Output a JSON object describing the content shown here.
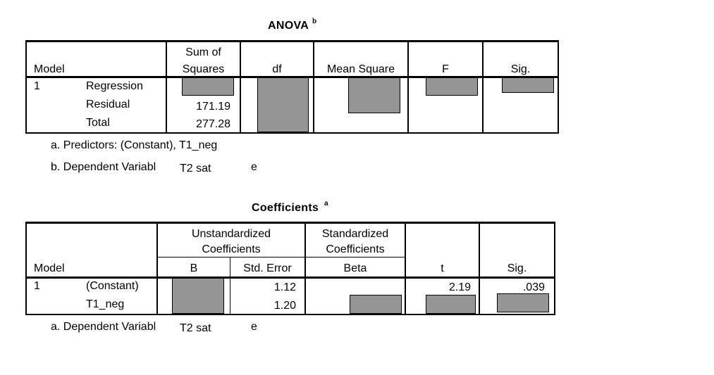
{
  "anova": {
    "title": "ANOVA",
    "title_sup": "b",
    "headers": {
      "model": "Model",
      "ss_line1": "Sum of",
      "ss_line2": "Squares",
      "df": "df",
      "ms": "Mean Square",
      "f": "F",
      "sig": "Sig."
    },
    "rows": [
      {
        "model_num": "1",
        "label": "Regression",
        "ss": ""
      },
      {
        "model_num": "",
        "label": "Residual",
        "ss": "171.19"
      },
      {
        "model_num": "",
        "label": "Total",
        "ss": "277.28"
      }
    ],
    "footnote_a": "a. Predictors: (Constant), T1_neg",
    "footnote_b_prefix": "b. Dependent Variabl",
    "footnote_b_overlay": "T2  sat",
    "footnote_b_suffix": "e"
  },
  "coefficients": {
    "title": "Coefficients",
    "title_sup": "a",
    "headers": {
      "model": "Model",
      "unstd_line1": "Unstandardized",
      "unstd_line2": "Coefficients",
      "std_line1": "Standardized",
      "std_line2": "Coefficients",
      "b": "B",
      "se": "Std. Error",
      "beta": "Beta",
      "t": "t",
      "sig": "Sig."
    },
    "rows": [
      {
        "model_num": "1",
        "label": "(Constant)",
        "se": "1.12",
        "t": "2.19",
        "sig": ".039"
      },
      {
        "model_num": "",
        "label": "T1_neg",
        "se": "1.20",
        "t": "",
        "sig": ""
      }
    ],
    "footnote_a_prefix": "a. Dependent Variabl",
    "footnote_a_overlay": "T2  sat",
    "footnote_a_suffix": "e"
  },
  "colors": {
    "redaction_fill": "#959595",
    "border": "#000000"
  }
}
